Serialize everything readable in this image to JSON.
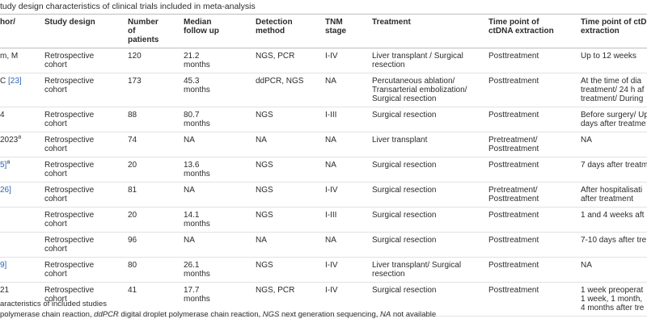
{
  "title": "tudy design characteristics of clinical trials included in meta-analysis",
  "table": {
    "header": [
      "hor/",
      "Study design",
      "Number of patients",
      "Median follow up",
      "Detection method",
      "TNM stage",
      "Treatment",
      "Time point of ctDNA extraction",
      "Time point of ctD extraction"
    ],
    "rows": [
      [
        {
          "text": "m, M"
        },
        "Retrospective cohort",
        120,
        "21.2 months",
        "NGS, PCR",
        "I-IV",
        "Liver transplant / Surgical resection",
        "Posttreatment",
        [
          "Up to 12 weeks"
        ]
      ],
      [
        {
          "text": "C ",
          "ref": "[23]"
        },
        "Retrospective cohort",
        173,
        "45.3 months",
        "ddPCR, NGS",
        "NA",
        "Percutaneous ablation/ Transarterial embolization/ Surgical resection",
        "Posttreatment",
        [
          "At the time of dia",
          "treatment/ 24 h af",
          "treatment/ During"
        ]
      ],
      [
        {
          "text": "4"
        },
        "Retrospective cohort",
        88,
        "80.7 months",
        "NGS",
        "I-III",
        "Surgical resection",
        "Posttreatment",
        [
          "Before surgery/ Up",
          "days after treatme"
        ]
      ],
      [
        {
          "text": "2023",
          "sup": "a"
        },
        "Retrospective cohort",
        74,
        "NA",
        "NA",
        "NA",
        "Liver transplant",
        "Pretreatment/ Posttreatment",
        [
          "NA"
        ]
      ],
      [
        {
          "ref": "5]",
          "sup": "a"
        },
        "Retrospective cohort",
        20,
        "13.6 months",
        "NGS",
        "NA",
        "Surgical resection",
        "Posttreatment",
        [
          "7 days after treatm"
        ]
      ],
      [
        {
          "ref": "26]"
        },
        "Retrospective cohort",
        81,
        "NA",
        "NGS",
        "I-IV",
        "Surgical resection",
        "Pretreatment/ Posttreatment",
        [
          "After hospitalisati",
          "after treatment"
        ]
      ],
      [
        null,
        "Retrospective cohort",
        20,
        "14.1 months",
        "NGS",
        "I-III",
        "Surgical resection",
        "Posttreatment",
        [
          "1 and 4 weeks aft"
        ]
      ],
      [
        null,
        "Retrospective cohort",
        96,
        "NA",
        "NA",
        "NA",
        "Surgical resection",
        "Posttreatment",
        [
          "7-10 days after tre"
        ]
      ],
      [
        {
          "ref": "9]"
        },
        "Retrospective cohort",
        80,
        "26.1 months",
        "NGS",
        "I-IV",
        "Liver transplant/ Surgical resection",
        "Posttreatment",
        [
          "NA"
        ]
      ],
      [
        {
          "text": "21"
        },
        "Retrospective cohort",
        41,
        "17.7 months",
        "NGS, PCR",
        "I-IV",
        "Surgical resection",
        "Posttreatment",
        [
          "1 week preoperat",
          "1 week, 1 month,",
          "4 months after tre"
        ]
      ]
    ]
  },
  "footnotes": {
    "caption": "aracteristics of included studies",
    "abbreviations": [
      "polymerase chain reaction, ",
      "ddPCR",
      " digital droplet polymerase chain reaction, ",
      "NGS",
      " next generation sequencing, ",
      "NA",
      " not available"
    ]
  }
}
